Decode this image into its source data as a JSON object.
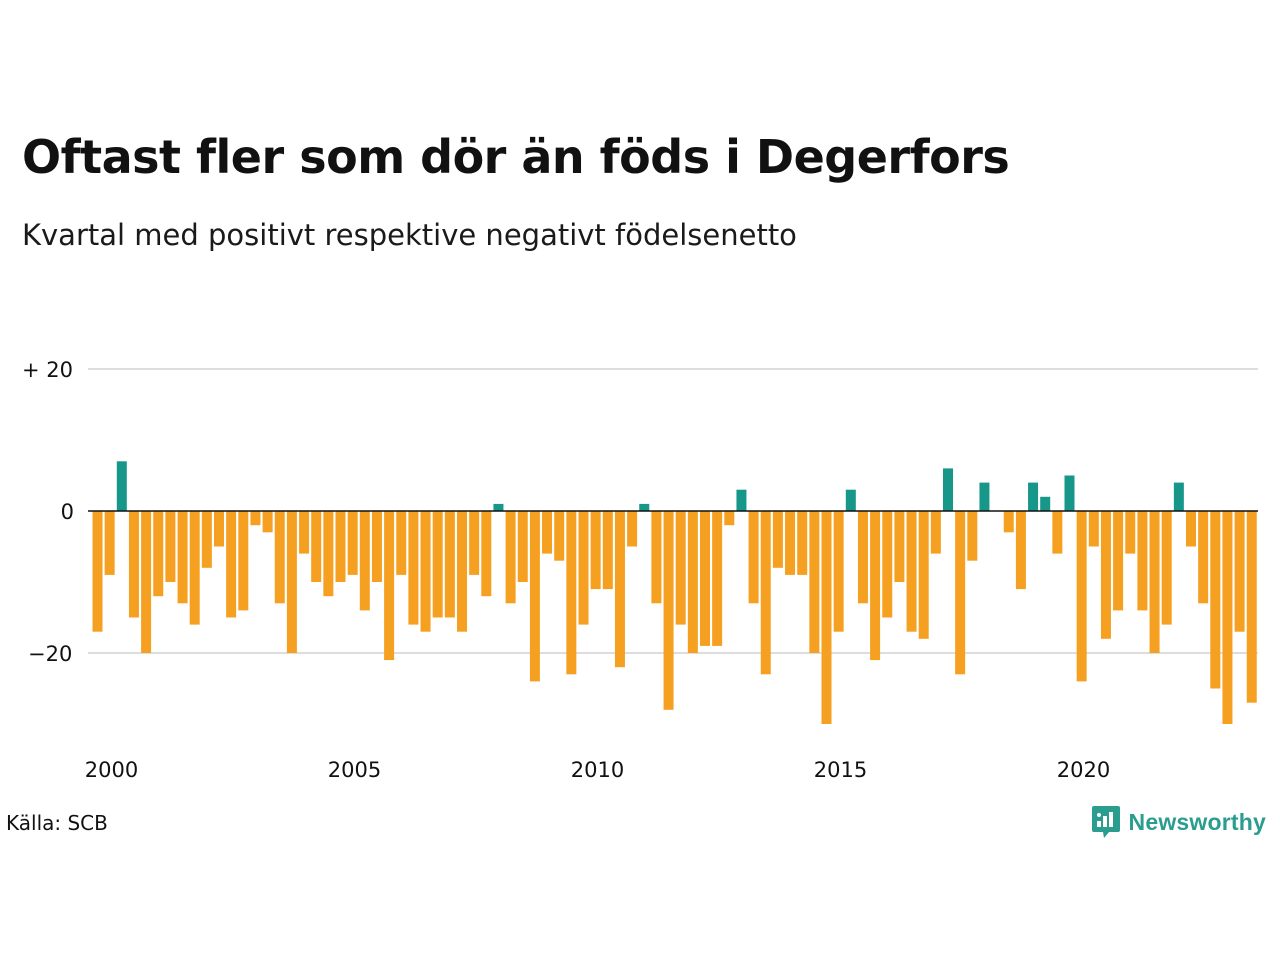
{
  "header": {
    "title": "Oftast fler som dör än föds i Degerfors",
    "subtitle": "Kvartal med positivt respektive negativt födelsenetto"
  },
  "footer": {
    "source": "Källa: SCB",
    "brand": "Newsworthy",
    "brand_icon": "newsworthy-logo-icon"
  },
  "colors": {
    "positive": "#17968a",
    "negative": "#f5a020",
    "grid": "#dddddd",
    "zero_line": "#111111",
    "brand": "#2a9d8f"
  },
  "chart_data": {
    "type": "bar",
    "ylim": [
      -31,
      21
    ],
    "y_ticks": [
      {
        "value": 20,
        "label": "+ 20"
      },
      {
        "value": 0,
        "label": "0"
      },
      {
        "value": -20,
        "label": "−20"
      }
    ],
    "x_ticks": [
      "2000",
      "2005",
      "2010",
      "2015",
      "2020"
    ],
    "grid": true,
    "categories": [
      "2000 Q1",
      "2000 Q2",
      "2000 Q3",
      "2000 Q4",
      "2001 Q1",
      "2001 Q2",
      "2001 Q3",
      "2001 Q4",
      "2002 Q1",
      "2002 Q2",
      "2002 Q3",
      "2002 Q4",
      "2003 Q1",
      "2003 Q2",
      "2003 Q3",
      "2003 Q4",
      "2004 Q1",
      "2004 Q2",
      "2004 Q3",
      "2004 Q4",
      "2005 Q1",
      "2005 Q2",
      "2005 Q3",
      "2005 Q4",
      "2006 Q1",
      "2006 Q2",
      "2006 Q3",
      "2006 Q4",
      "2007 Q1",
      "2007 Q2",
      "2007 Q3",
      "2007 Q4",
      "2008 Q1",
      "2008 Q2",
      "2008 Q3",
      "2008 Q4",
      "2009 Q1",
      "2009 Q2",
      "2009 Q3",
      "2009 Q4",
      "2010 Q1",
      "2010 Q2",
      "2010 Q3",
      "2010 Q4",
      "2011 Q1",
      "2011 Q2",
      "2011 Q3",
      "2011 Q4",
      "2012 Q1",
      "2012 Q2",
      "2012 Q3",
      "2012 Q4",
      "2013 Q1",
      "2013 Q2",
      "2013 Q3",
      "2013 Q4",
      "2014 Q1",
      "2014 Q2",
      "2014 Q3",
      "2014 Q4",
      "2015 Q1",
      "2015 Q2",
      "2015 Q3",
      "2015 Q4",
      "2016 Q1",
      "2016 Q2",
      "2016 Q3",
      "2016 Q4",
      "2017 Q1",
      "2017 Q2",
      "2017 Q3",
      "2017 Q4",
      "2018 Q1",
      "2018 Q2",
      "2018 Q3",
      "2018 Q4",
      "2019 Q1",
      "2019 Q2",
      "2019 Q3",
      "2019 Q4",
      "2020 Q1",
      "2020 Q2",
      "2020 Q3",
      "2020 Q4",
      "2021 Q1",
      "2021 Q2",
      "2021 Q3",
      "2021 Q4",
      "2022 Q1",
      "2022 Q2",
      "2022 Q3",
      "2022 Q4",
      "2023 Q1",
      "2023 Q2",
      "2023 Q3",
      "2023 Q4"
    ],
    "values": [
      -17,
      -9,
      7,
      -15,
      -20,
      -12,
      -10,
      -13,
      -16,
      -8,
      -5,
      -15,
      -14,
      -2,
      -3,
      -13,
      -20,
      -6,
      -10,
      -12,
      -10,
      -9,
      -14,
      -10,
      -21,
      -9,
      -16,
      -17,
      -15,
      -15,
      -17,
      -9,
      -12,
      1,
      -13,
      -10,
      -24,
      -6,
      -7,
      -23,
      -16,
      -11,
      -11,
      -22,
      -5,
      1,
      -13,
      -28,
      -16,
      -20,
      -19,
      -19,
      -2,
      3,
      -13,
      -23,
      -8,
      -9,
      -9,
      -20,
      -30,
      -17,
      3,
      -13,
      -21,
      -15,
      -10,
      -17,
      -18,
      -6,
      6,
      -23,
      -7,
      4,
      0,
      -3,
      -11,
      4,
      2,
      -6,
      5,
      -24,
      -5,
      -18,
      -14,
      -6,
      -14,
      -20,
      -16,
      4,
      -5,
      -13,
      -25,
      -30,
      -17,
      -27
    ]
  }
}
